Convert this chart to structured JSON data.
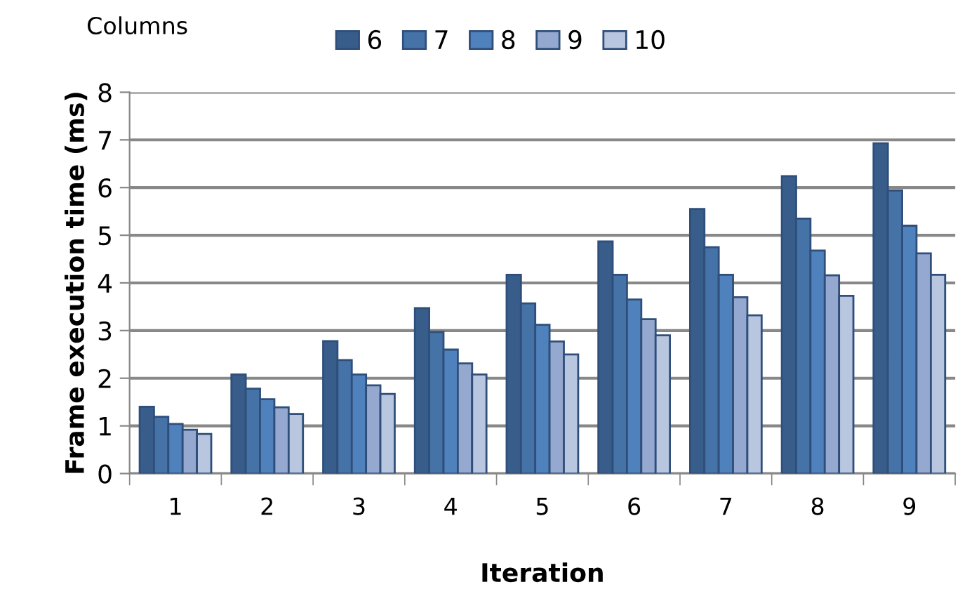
{
  "chart_data": {
    "type": "bar",
    "xlabel": "Iteration",
    "ylabel": "Frame execution time (ms)",
    "legend_title": "Columns",
    "categories": [
      "1",
      "2",
      "3",
      "4",
      "5",
      "6",
      "7",
      "8",
      "9"
    ],
    "series": [
      {
        "name": "6",
        "color": "#385d8a",
        "values": [
          1.4,
          2.08,
          2.78,
          3.47,
          4.17,
          4.87,
          5.55,
          6.24,
          6.93
        ]
      },
      {
        "name": "7",
        "color": "#4572a7",
        "values": [
          1.19,
          1.78,
          2.38,
          2.97,
          3.57,
          4.17,
          4.75,
          5.35,
          5.94
        ]
      },
      {
        "name": "8",
        "color": "#4f81bd",
        "values": [
          1.04,
          1.56,
          2.08,
          2.6,
          3.12,
          3.65,
          4.17,
          4.68,
          5.2
        ]
      },
      {
        "name": "9",
        "color": "#95a9d0",
        "values": [
          0.92,
          1.39,
          1.85,
          2.31,
          2.77,
          3.24,
          3.7,
          4.16,
          4.62
        ]
      },
      {
        "name": "10",
        "color": "#b9c6e0",
        "values": [
          0.83,
          1.25,
          1.67,
          2.08,
          2.5,
          2.9,
          3.32,
          3.73,
          4.17
        ]
      }
    ],
    "ylim": [
      0,
      8
    ],
    "yticks": [
      0,
      1,
      2,
      3,
      4,
      5,
      6,
      7,
      8
    ],
    "grid": "y",
    "legend": "top"
  }
}
